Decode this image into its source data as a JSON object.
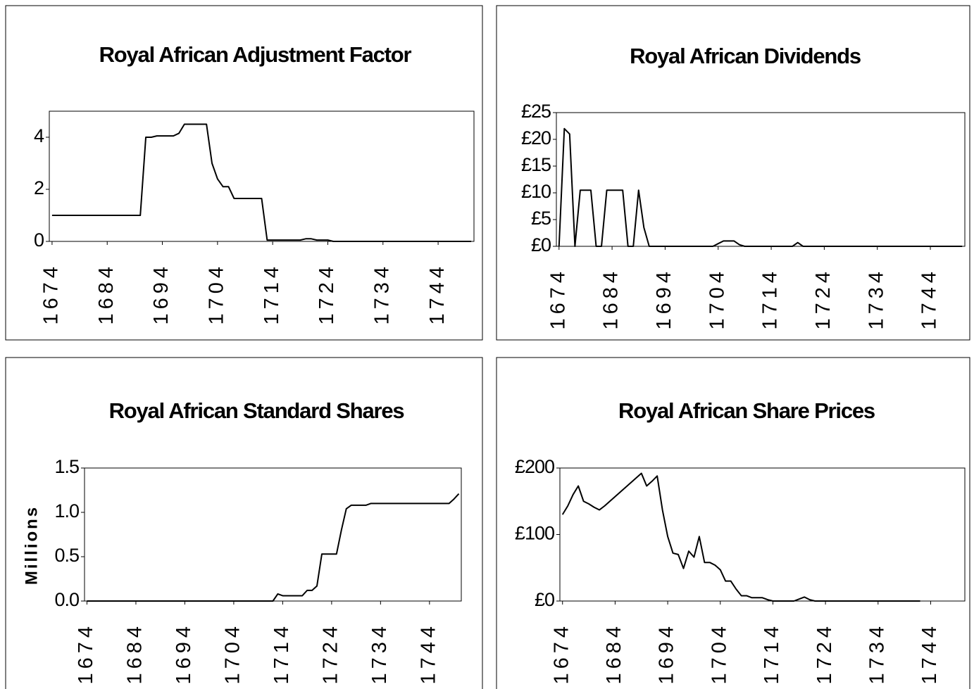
{
  "chart_data": [
    {
      "type": "line",
      "title": "Royal African Adjustment Factor",
      "color": "#000000",
      "x": [
        1674,
        1675,
        1676,
        1677,
        1678,
        1679,
        1680,
        1681,
        1682,
        1683,
        1684,
        1685,
        1686,
        1687,
        1688,
        1689,
        1690,
        1691,
        1692,
        1693,
        1694,
        1695,
        1696,
        1697,
        1698,
        1699,
        1700,
        1701,
        1702,
        1703,
        1704,
        1705,
        1706,
        1707,
        1708,
        1709,
        1710,
        1711,
        1712,
        1713,
        1714,
        1715,
        1716,
        1717,
        1718,
        1719,
        1720,
        1721,
        1722,
        1723,
        1724,
        1725,
        1726,
        1727,
        1728,
        1729,
        1730,
        1731,
        1732,
        1733,
        1734,
        1735,
        1736,
        1737,
        1738,
        1739,
        1740,
        1741,
        1742,
        1743,
        1744,
        1745,
        1746,
        1747,
        1748,
        1749,
        1750
      ],
      "values": [
        1,
        1,
        1,
        1,
        1,
        1,
        1,
        1,
        1,
        1,
        1,
        1,
        1,
        1,
        1,
        1,
        1,
        4,
        4,
        4.05,
        4.05,
        4.05,
        4.05,
        4.15,
        4.5,
        4.5,
        4.5,
        4.5,
        4.5,
        3.0,
        2.4,
        2.1,
        2.1,
        1.65,
        1.65,
        1.65,
        1.65,
        1.65,
        1.65,
        0.05,
        0.05,
        0.05,
        0.05,
        0.05,
        0.05,
        0.05,
        0.1,
        0.1,
        0.05,
        0.05,
        0.05,
        0,
        0,
        0,
        0,
        0,
        0,
        0,
        0,
        0,
        0,
        0,
        0,
        0,
        0,
        0,
        0,
        0,
        0,
        0,
        0,
        0,
        0,
        0,
        0,
        0,
        0
      ],
      "xlim": [
        1673.5,
        1750.5
      ],
      "xticks": [
        1674,
        1684,
        1694,
        1704,
        1714,
        1724,
        1734,
        1744
      ],
      "ylim": [
        0,
        5
      ],
      "yticks": [
        0,
        2,
        4
      ]
    },
    {
      "type": "line",
      "title": "Royal African Dividends",
      "color": "#000000",
      "x": [
        1674,
        1675,
        1676,
        1677,
        1678,
        1679,
        1680,
        1681,
        1682,
        1683,
        1684,
        1685,
        1686,
        1687,
        1688,
        1689,
        1690,
        1691,
        1692,
        1693,
        1694,
        1695,
        1696,
        1697,
        1698,
        1699,
        1700,
        1701,
        1702,
        1703,
        1704,
        1705,
        1706,
        1707,
        1708,
        1709,
        1710,
        1711,
        1712,
        1713,
        1714,
        1715,
        1716,
        1717,
        1718,
        1719,
        1720,
        1721,
        1722,
        1723,
        1724,
        1725,
        1726,
        1727,
        1728,
        1729,
        1730,
        1731,
        1732,
        1733,
        1734,
        1735,
        1736,
        1737,
        1738,
        1739,
        1740,
        1741,
        1742,
        1743,
        1744,
        1745,
        1746,
        1747,
        1748,
        1749,
        1750
      ],
      "values": [
        0,
        22,
        21,
        0,
        10.5,
        10.5,
        10.5,
        0,
        0,
        10.5,
        10.5,
        10.5,
        10.5,
        0,
        0,
        10.5,
        3.5,
        0,
        0,
        0,
        0,
        0,
        0,
        0,
        0,
        0,
        0,
        0,
        0,
        0,
        0.5,
        1,
        1,
        1,
        0.3,
        0,
        0,
        0,
        0,
        0,
        0,
        0,
        0,
        0,
        0,
        0.7,
        0,
        0,
        0,
        0,
        0,
        0,
        0,
        0,
        0,
        0,
        0,
        0,
        0,
        0,
        0,
        0,
        0,
        0,
        0,
        0,
        0,
        0,
        0,
        0,
        0,
        0,
        0,
        0,
        0,
        0,
        0
      ],
      "xlim": [
        1673.5,
        1750.5
      ],
      "xticks": [
        1674,
        1684,
        1694,
        1704,
        1714,
        1724,
        1734,
        1744
      ],
      "ylim": [
        0,
        25
      ],
      "yticks": [
        {
          "value": 0,
          "label": "£0"
        },
        {
          "value": 5,
          "label": "£5"
        },
        {
          "value": 10,
          "label": "£10"
        },
        {
          "value": 15,
          "label": "£15"
        },
        {
          "value": 20,
          "label": "£20"
        },
        {
          "value": 25,
          "label": "£25"
        }
      ]
    },
    {
      "type": "line",
      "title": "Royal African Standard Shares",
      "y_label": "Millions",
      "color": "#000000",
      "x": [
        1674,
        1675,
        1676,
        1677,
        1678,
        1679,
        1680,
        1681,
        1682,
        1683,
        1684,
        1685,
        1686,
        1687,
        1688,
        1689,
        1690,
        1691,
        1692,
        1693,
        1694,
        1695,
        1696,
        1697,
        1698,
        1699,
        1700,
        1701,
        1702,
        1703,
        1704,
        1705,
        1706,
        1707,
        1708,
        1709,
        1710,
        1711,
        1712,
        1713,
        1714,
        1715,
        1716,
        1717,
        1718,
        1719,
        1720,
        1721,
        1722,
        1723,
        1724,
        1725,
        1726,
        1727,
        1728,
        1729,
        1730,
        1731,
        1732,
        1733,
        1734,
        1735,
        1736,
        1737,
        1738,
        1739,
        1740,
        1741,
        1742,
        1743,
        1744,
        1745,
        1746,
        1747,
        1748,
        1749,
        1750
      ],
      "values": [
        0,
        0,
        0,
        0,
        0,
        0,
        0,
        0,
        0,
        0,
        0,
        0,
        0,
        0,
        0,
        0,
        0,
        0,
        0,
        0,
        0,
        0,
        0,
        0,
        0,
        0,
        0,
        0,
        0,
        0,
        0,
        0,
        0,
        0,
        0,
        0,
        0,
        0,
        0,
        0.08,
        0.06,
        0.06,
        0.06,
        0.06,
        0.06,
        0.12,
        0.12,
        0.17,
        0.53,
        0.53,
        0.53,
        0.53,
        0.8,
        1.04,
        1.08,
        1.08,
        1.08,
        1.08,
        1.1,
        1.1,
        1.1,
        1.1,
        1.1,
        1.1,
        1.1,
        1.1,
        1.1,
        1.1,
        1.1,
        1.1,
        1.1,
        1.1,
        1.1,
        1.1,
        1.1,
        1.15,
        1.21
      ],
      "xlim": [
        1673.5,
        1750.5
      ],
      "xticks": [
        1674,
        1684,
        1694,
        1704,
        1714,
        1724,
        1734,
        1744
      ],
      "ylim": [
        0,
        1.5
      ],
      "yticks": [
        {
          "value": 0,
          "label": "0.0"
        },
        0.5,
        {
          "value": 1,
          "label": "1.0"
        },
        1.5
      ]
    },
    {
      "type": "line",
      "title": "Royal African Share Prices",
      "color": "#000000",
      "x": [
        1674,
        1675,
        1676,
        1677,
        1678,
        1679,
        1680,
        1681,
        1682,
        1683,
        1684,
        1685,
        1686,
        1687,
        1688,
        1689,
        1690,
        1691,
        1692,
        1693,
        1694,
        1695,
        1696,
        1697,
        1698,
        1699,
        1700,
        1701,
        1702,
        1703,
        1704,
        1705,
        1706,
        1707,
        1708,
        1709,
        1710,
        1711,
        1712,
        1713,
        1714,
        1715,
        1716,
        1717,
        1718,
        1719,
        1720,
        1721,
        1722,
        1723,
        1724,
        1725,
        1726,
        1727,
        1728,
        1729,
        1730,
        1731,
        1732,
        1733,
        1734,
        1735,
        1736,
        1737,
        1738,
        1739,
        1740,
        1741,
        1742,
        1743,
        1744,
        1745,
        1746,
        1747,
        1748,
        1749,
        1750
      ],
      "values": [
        130,
        143,
        160,
        173,
        150,
        146,
        141,
        137,
        143,
        150,
        157,
        164,
        171,
        178,
        185,
        192,
        173,
        180,
        188,
        137,
        97,
        72,
        70,
        49,
        75,
        66,
        97,
        58,
        58,
        54,
        47,
        30,
        30,
        18,
        8,
        8,
        5,
        5,
        5,
        2,
        0,
        0,
        0,
        0,
        0,
        3,
        6,
        2,
        0,
        0,
        0,
        0,
        0,
        0,
        0,
        0,
        0,
        0,
        0,
        0,
        0,
        0,
        0,
        0,
        0,
        0,
        0,
        0,
        0,
        null,
        null,
        null,
        null,
        null,
        null,
        null,
        null
      ],
      "xlim": [
        1673.5,
        1750.5
      ],
      "xticks": [
        1674,
        1684,
        1694,
        1704,
        1714,
        1724,
        1734,
        1744
      ],
      "ylim": [
        0,
        200
      ],
      "yticks": [
        {
          "value": 0,
          "label": "£0"
        },
        {
          "value": 100,
          "label": "£100"
        },
        {
          "value": 200,
          "label": "£200"
        }
      ]
    }
  ]
}
